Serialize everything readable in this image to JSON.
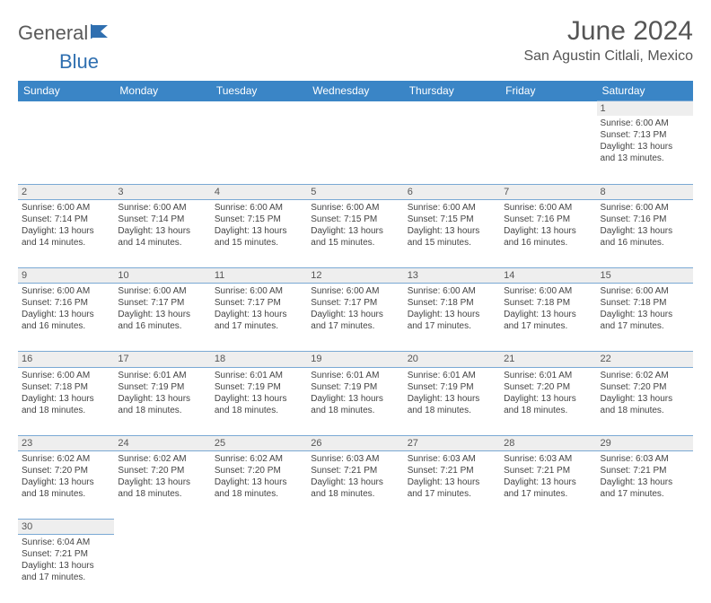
{
  "brand": {
    "part1": "General",
    "part2": "Blue",
    "logo_color": "#2f6fb0",
    "text_color": "#5a5a5a"
  },
  "title": {
    "month": "June 2024",
    "location": "San Agustin Citlali, Mexico"
  },
  "colors": {
    "header_bg": "#3a85c6",
    "header_fg": "#ffffff",
    "daynum_bg": "#eeeeee",
    "border": "#7aa9d4"
  },
  "weekdays": [
    "Sunday",
    "Monday",
    "Tuesday",
    "Wednesday",
    "Thursday",
    "Friday",
    "Saturday"
  ],
  "weeks": [
    [
      null,
      null,
      null,
      null,
      null,
      null,
      {
        "n": "1",
        "sunrise": "Sunrise: 6:00 AM",
        "sunset": "Sunset: 7:13 PM",
        "day1": "Daylight: 13 hours",
        "day2": "and 13 minutes."
      }
    ],
    [
      {
        "n": "2",
        "sunrise": "Sunrise: 6:00 AM",
        "sunset": "Sunset: 7:14 PM",
        "day1": "Daylight: 13 hours",
        "day2": "and 14 minutes."
      },
      {
        "n": "3",
        "sunrise": "Sunrise: 6:00 AM",
        "sunset": "Sunset: 7:14 PM",
        "day1": "Daylight: 13 hours",
        "day2": "and 14 minutes."
      },
      {
        "n": "4",
        "sunrise": "Sunrise: 6:00 AM",
        "sunset": "Sunset: 7:15 PM",
        "day1": "Daylight: 13 hours",
        "day2": "and 15 minutes."
      },
      {
        "n": "5",
        "sunrise": "Sunrise: 6:00 AM",
        "sunset": "Sunset: 7:15 PM",
        "day1": "Daylight: 13 hours",
        "day2": "and 15 minutes."
      },
      {
        "n": "6",
        "sunrise": "Sunrise: 6:00 AM",
        "sunset": "Sunset: 7:15 PM",
        "day1": "Daylight: 13 hours",
        "day2": "and 15 minutes."
      },
      {
        "n": "7",
        "sunrise": "Sunrise: 6:00 AM",
        "sunset": "Sunset: 7:16 PM",
        "day1": "Daylight: 13 hours",
        "day2": "and 16 minutes."
      },
      {
        "n": "8",
        "sunrise": "Sunrise: 6:00 AM",
        "sunset": "Sunset: 7:16 PM",
        "day1": "Daylight: 13 hours",
        "day2": "and 16 minutes."
      }
    ],
    [
      {
        "n": "9",
        "sunrise": "Sunrise: 6:00 AM",
        "sunset": "Sunset: 7:16 PM",
        "day1": "Daylight: 13 hours",
        "day2": "and 16 minutes."
      },
      {
        "n": "10",
        "sunrise": "Sunrise: 6:00 AM",
        "sunset": "Sunset: 7:17 PM",
        "day1": "Daylight: 13 hours",
        "day2": "and 16 minutes."
      },
      {
        "n": "11",
        "sunrise": "Sunrise: 6:00 AM",
        "sunset": "Sunset: 7:17 PM",
        "day1": "Daylight: 13 hours",
        "day2": "and 17 minutes."
      },
      {
        "n": "12",
        "sunrise": "Sunrise: 6:00 AM",
        "sunset": "Sunset: 7:17 PM",
        "day1": "Daylight: 13 hours",
        "day2": "and 17 minutes."
      },
      {
        "n": "13",
        "sunrise": "Sunrise: 6:00 AM",
        "sunset": "Sunset: 7:18 PM",
        "day1": "Daylight: 13 hours",
        "day2": "and 17 minutes."
      },
      {
        "n": "14",
        "sunrise": "Sunrise: 6:00 AM",
        "sunset": "Sunset: 7:18 PM",
        "day1": "Daylight: 13 hours",
        "day2": "and 17 minutes."
      },
      {
        "n": "15",
        "sunrise": "Sunrise: 6:00 AM",
        "sunset": "Sunset: 7:18 PM",
        "day1": "Daylight: 13 hours",
        "day2": "and 17 minutes."
      }
    ],
    [
      {
        "n": "16",
        "sunrise": "Sunrise: 6:00 AM",
        "sunset": "Sunset: 7:18 PM",
        "day1": "Daylight: 13 hours",
        "day2": "and 18 minutes."
      },
      {
        "n": "17",
        "sunrise": "Sunrise: 6:01 AM",
        "sunset": "Sunset: 7:19 PM",
        "day1": "Daylight: 13 hours",
        "day2": "and 18 minutes."
      },
      {
        "n": "18",
        "sunrise": "Sunrise: 6:01 AM",
        "sunset": "Sunset: 7:19 PM",
        "day1": "Daylight: 13 hours",
        "day2": "and 18 minutes."
      },
      {
        "n": "19",
        "sunrise": "Sunrise: 6:01 AM",
        "sunset": "Sunset: 7:19 PM",
        "day1": "Daylight: 13 hours",
        "day2": "and 18 minutes."
      },
      {
        "n": "20",
        "sunrise": "Sunrise: 6:01 AM",
        "sunset": "Sunset: 7:19 PM",
        "day1": "Daylight: 13 hours",
        "day2": "and 18 minutes."
      },
      {
        "n": "21",
        "sunrise": "Sunrise: 6:01 AM",
        "sunset": "Sunset: 7:20 PM",
        "day1": "Daylight: 13 hours",
        "day2": "and 18 minutes."
      },
      {
        "n": "22",
        "sunrise": "Sunrise: 6:02 AM",
        "sunset": "Sunset: 7:20 PM",
        "day1": "Daylight: 13 hours",
        "day2": "and 18 minutes."
      }
    ],
    [
      {
        "n": "23",
        "sunrise": "Sunrise: 6:02 AM",
        "sunset": "Sunset: 7:20 PM",
        "day1": "Daylight: 13 hours",
        "day2": "and 18 minutes."
      },
      {
        "n": "24",
        "sunrise": "Sunrise: 6:02 AM",
        "sunset": "Sunset: 7:20 PM",
        "day1": "Daylight: 13 hours",
        "day2": "and 18 minutes."
      },
      {
        "n": "25",
        "sunrise": "Sunrise: 6:02 AM",
        "sunset": "Sunset: 7:20 PM",
        "day1": "Daylight: 13 hours",
        "day2": "and 18 minutes."
      },
      {
        "n": "26",
        "sunrise": "Sunrise: 6:03 AM",
        "sunset": "Sunset: 7:21 PM",
        "day1": "Daylight: 13 hours",
        "day2": "and 18 minutes."
      },
      {
        "n": "27",
        "sunrise": "Sunrise: 6:03 AM",
        "sunset": "Sunset: 7:21 PM",
        "day1": "Daylight: 13 hours",
        "day2": "and 17 minutes."
      },
      {
        "n": "28",
        "sunrise": "Sunrise: 6:03 AM",
        "sunset": "Sunset: 7:21 PM",
        "day1": "Daylight: 13 hours",
        "day2": "and 17 minutes."
      },
      {
        "n": "29",
        "sunrise": "Sunrise: 6:03 AM",
        "sunset": "Sunset: 7:21 PM",
        "day1": "Daylight: 13 hours",
        "day2": "and 17 minutes."
      }
    ],
    [
      {
        "n": "30",
        "sunrise": "Sunrise: 6:04 AM",
        "sunset": "Sunset: 7:21 PM",
        "day1": "Daylight: 13 hours",
        "day2": "and 17 minutes."
      },
      null,
      null,
      null,
      null,
      null,
      null
    ]
  ]
}
